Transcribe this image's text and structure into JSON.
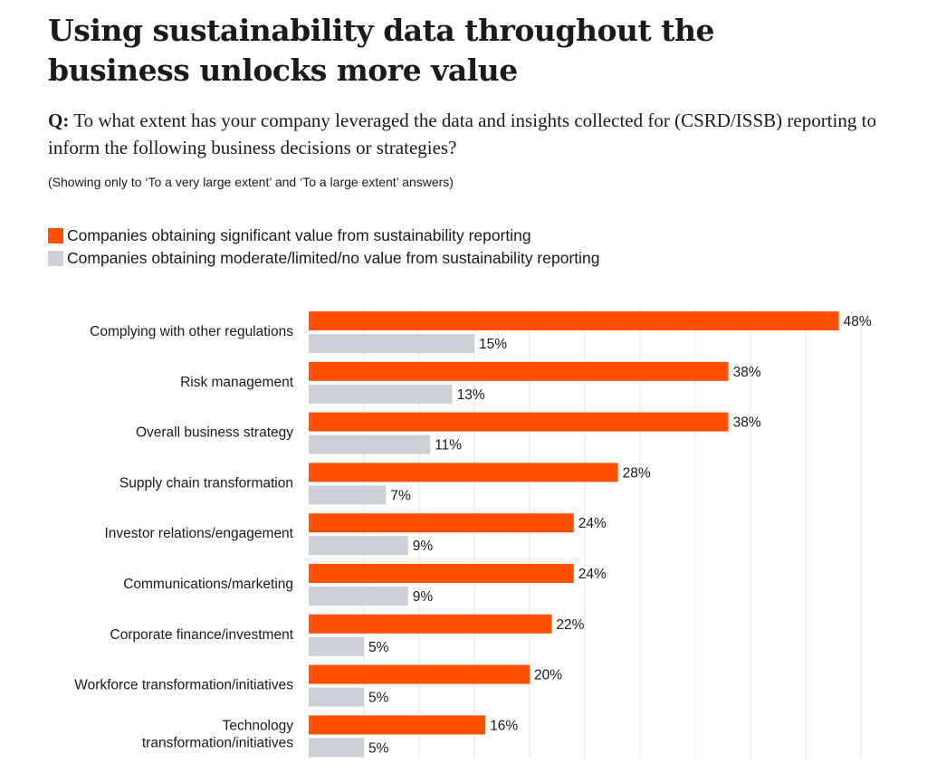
{
  "header": {
    "title": "Using sustainability data throughout the business unlocks more value",
    "question_prefix": "Q:",
    "question": "To what extent has your company leveraged the data and insights collected for (CSRD/ISSB) reporting to inform the following business decisions or strategies?",
    "note": "(Showing only to ‘To a very large extent’ and ‘To a large extent’ answers)"
  },
  "colors": {
    "significant": "#fe5000",
    "moderate": "#cdd0d6",
    "grid": "#e6e6e6"
  },
  "chart_data": {
    "type": "bar",
    "orientation": "horizontal",
    "title": "Using sustainability data throughout the business unlocks more value",
    "categories": [
      "Complying with other regulations",
      "Risk management",
      "Overall business strategy",
      "Supply chain transformation",
      "Investor relations/engagement",
      "Communications/marketing",
      "Corporate finance/investment",
      "Workforce transformation/initiatives",
      "Technology transformation/initiatives"
    ],
    "series": [
      {
        "name": "Companies obtaining significant value from sustainability reporting",
        "values": [
          48,
          38,
          38,
          28,
          24,
          24,
          22,
          20,
          16
        ]
      },
      {
        "name": "Companies obtaining moderate/limited/no value from sustainability reporting",
        "values": [
          15,
          13,
          11,
          7,
          9,
          9,
          5,
          5,
          5
        ]
      }
    ],
    "value_suffix": "%",
    "xlim": [
      0,
      50
    ],
    "grid_step": 5,
    "grid": true,
    "legend_position": "top-left"
  }
}
